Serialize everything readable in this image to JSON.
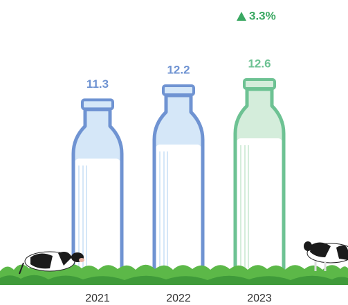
{
  "chart_data": {
    "type": "bottle-bar",
    "categories": [
      "2021",
      "2022",
      "2023"
    ],
    "values": [
      11.3,
      12.2,
      12.6
    ],
    "colors": [
      "#6f93d2",
      "#6f93d2",
      "#6dc293"
    ],
    "annotation": "3.3%"
  }
}
